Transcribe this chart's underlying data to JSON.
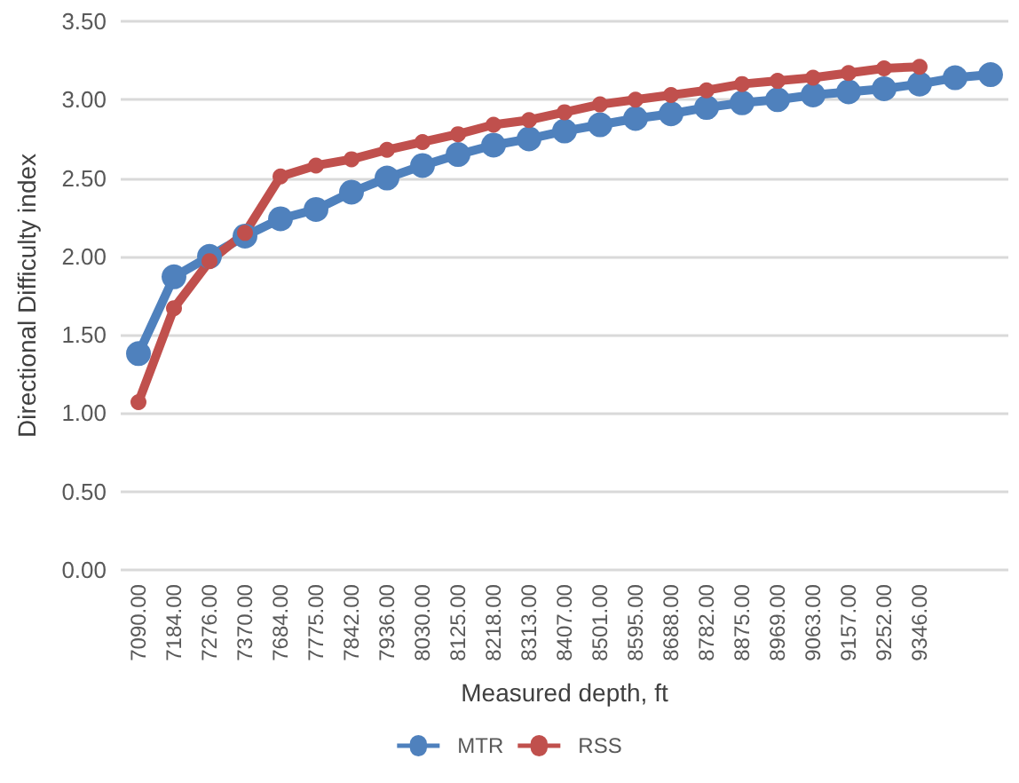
{
  "chart_data": {
    "type": "line",
    "xlabel": "Measured depth, ft",
    "ylabel": "Directional Difficulty index",
    "categories": [
      "7090.00",
      "7184.00",
      "7276.00",
      "7370.00",
      "7684.00",
      "7775.00",
      "7842.00",
      "7936.00",
      "8030.00",
      "8125.00",
      "8218.00",
      "8313.00",
      "8407.00",
      "8501.00",
      "8595.00",
      "8688.00",
      "8782.00",
      "8875.00",
      "8969.00",
      "9063.00",
      "9157.00",
      "9252.00",
      "9346.00",
      null,
      null
    ],
    "series": [
      {
        "name": "MTR",
        "color": "#4f81bd",
        "values": [
          1.38,
          1.87,
          2.0,
          2.13,
          2.24,
          2.3,
          2.41,
          2.5,
          2.58,
          2.65,
          2.71,
          2.75,
          2.8,
          2.84,
          2.88,
          2.91,
          2.95,
          2.98,
          3.0,
          3.03,
          3.05,
          3.07,
          3.1,
          3.14,
          3.16
        ]
      },
      {
        "name": "RSS",
        "color": "#c0504d",
        "values": [
          1.07,
          1.67,
          1.97,
          2.15,
          2.51,
          2.58,
          2.62,
          2.68,
          2.73,
          2.78,
          2.84,
          2.87,
          2.92,
          2.97,
          3.0,
          3.03,
          3.06,
          3.1,
          3.12,
          3.14,
          3.17,
          3.2,
          3.21,
          null,
          null
        ]
      }
    ],
    "ylim": [
      0,
      3.5
    ],
    "yticks": [
      {
        "value": 0,
        "label": "0.00"
      },
      {
        "value": 0.5,
        "label": "0.50"
      },
      {
        "value": 1,
        "label": "1.00"
      },
      {
        "value": 1.5,
        "label": "1.50"
      },
      {
        "value": 2,
        "label": "2.00"
      },
      {
        "value": 2.5,
        "label": "2.50"
      },
      {
        "value": 3,
        "label": "3.00"
      },
      {
        "value": 3.5,
        "label": "3.50"
      }
    ],
    "grid": "y",
    "legend": "bottom",
    "marker": "circle",
    "line_style": "solid"
  }
}
